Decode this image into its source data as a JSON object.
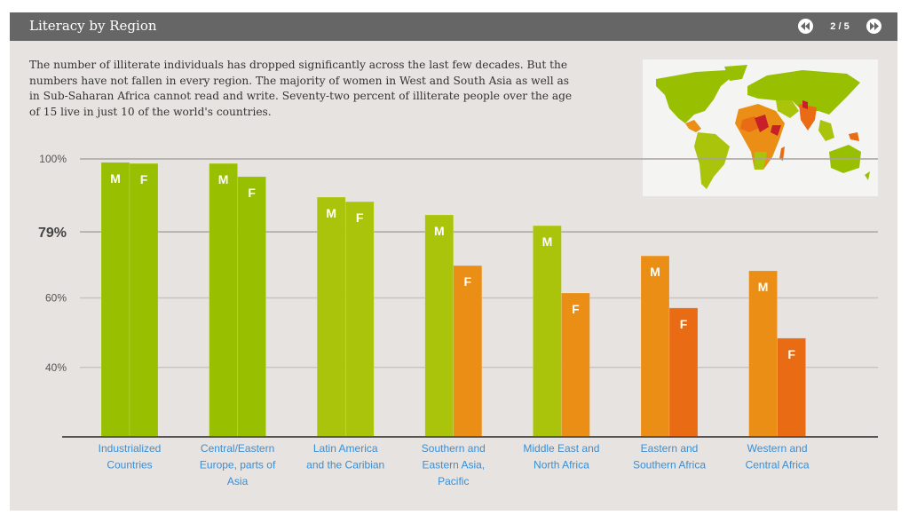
{
  "header": {
    "title": "Literacy by Region",
    "pager": "2 / 5",
    "prev_icon": "rewind-icon",
    "next_icon": "fast-forward-icon"
  },
  "intro_text": "The number of illiterate individuals has dropped significantly across the last few decades. But the numbers have not fallen in every region. The majority of women in West and South Asia as well as in Sub-Saharan Africa cannot read and write. Seventy-two percent of illiterate people over the age of 15 live in just 10 of the world's countries.",
  "map": {
    "description": "World map of literacy rates",
    "icon": "world-map-icon"
  },
  "colors": {
    "green_high": "#98bf00",
    "green_mid": "#a9c40a",
    "orange": "#ea8e16",
    "orange_dark": "#e96c15",
    "link": "#3a8fd6",
    "grid": "#c9c5c2",
    "axis": "#555555"
  },
  "chart_data": {
    "type": "bar",
    "title": "Literacy by Region",
    "xlabel": "",
    "ylabel": "",
    "ylim": [
      20,
      100
    ],
    "yticks": [
      {
        "value": 100,
        "label": "100%",
        "emphasis": false
      },
      {
        "value": 79,
        "label": "79%",
        "emphasis": true
      },
      {
        "value": 60,
        "label": "60%",
        "emphasis": false
      },
      {
        "value": 40,
        "label": "40%",
        "emphasis": false
      }
    ],
    "grid": true,
    "bar_labels": [
      "M",
      "F"
    ],
    "categories": [
      [
        "Industrialized",
        "Countries"
      ],
      [
        "Central/Eastern",
        "Europe, parts of",
        "Asia"
      ],
      [
        "Latin America",
        "and the Caribian"
      ],
      [
        "Southern and",
        "Eastern Asia,",
        "Pacific"
      ],
      [
        "Middle East and",
        "North Africa"
      ],
      [
        "Eastern and",
        "Southern Africa"
      ],
      [
        "Western and",
        "Central Africa"
      ]
    ],
    "series": [
      {
        "name": "M",
        "values": [
          99.0,
          98.7,
          89.0,
          83.9,
          80.8,
          72.1,
          67.8
        ],
        "colors": [
          "green_high",
          "green_high",
          "green_mid",
          "green_mid",
          "green_mid",
          "orange",
          "orange"
        ]
      },
      {
        "name": "F",
        "values": [
          98.7,
          94.9,
          87.7,
          69.3,
          61.4,
          57.1,
          48.4
        ],
        "colors": [
          "green_high",
          "green_high",
          "green_mid",
          "orange",
          "orange",
          "orange_dark",
          "orange_dark"
        ]
      }
    ]
  }
}
